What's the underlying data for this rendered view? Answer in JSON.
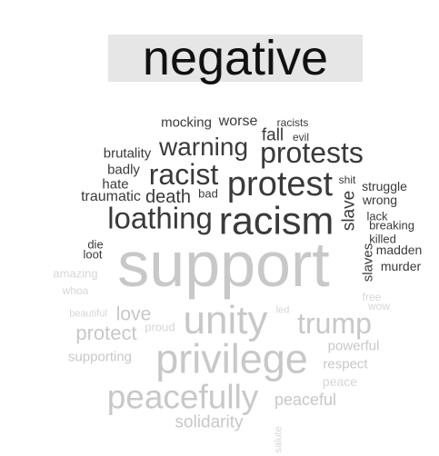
{
  "title": "negative",
  "words": {
    "mocking": "mocking",
    "worse": "worse",
    "racists": "racists",
    "fall": "fall",
    "evil": "evil",
    "brutality": "brutality",
    "warning": "warning",
    "protests": "protests",
    "badly": "badly",
    "racist": "racist",
    "protest": "protest",
    "shit": "shit",
    "struggle": "struggle",
    "hate": "hate",
    "traumatic": "traumatic",
    "death": "death",
    "bad": "bad",
    "wrong": "wrong",
    "slave": "slave",
    "loathing": "loathing",
    "racism": "racism",
    "lack": "lack",
    "breaking": "breaking",
    "die": "die",
    "killed": "killed",
    "loot": "loot",
    "madden": "madden",
    "slaves": "slaves",
    "murder": "murder",
    "support": "support",
    "amazing": "amazing",
    "whoa": "whoa",
    "free": "free",
    "wow": "wow",
    "beautiful": "beautiful",
    "love": "love",
    "led": "led",
    "unity": "unity",
    "trump": "trump",
    "protect": "protect",
    "proud": "proud",
    "powerful": "powerful",
    "supporting": "supporting",
    "privilege": "privilege",
    "respect": "respect",
    "peace": "peace",
    "peacefully": "peacefully",
    "peaceful": "peaceful",
    "solidarity": "solidarity",
    "salute": "salute"
  }
}
